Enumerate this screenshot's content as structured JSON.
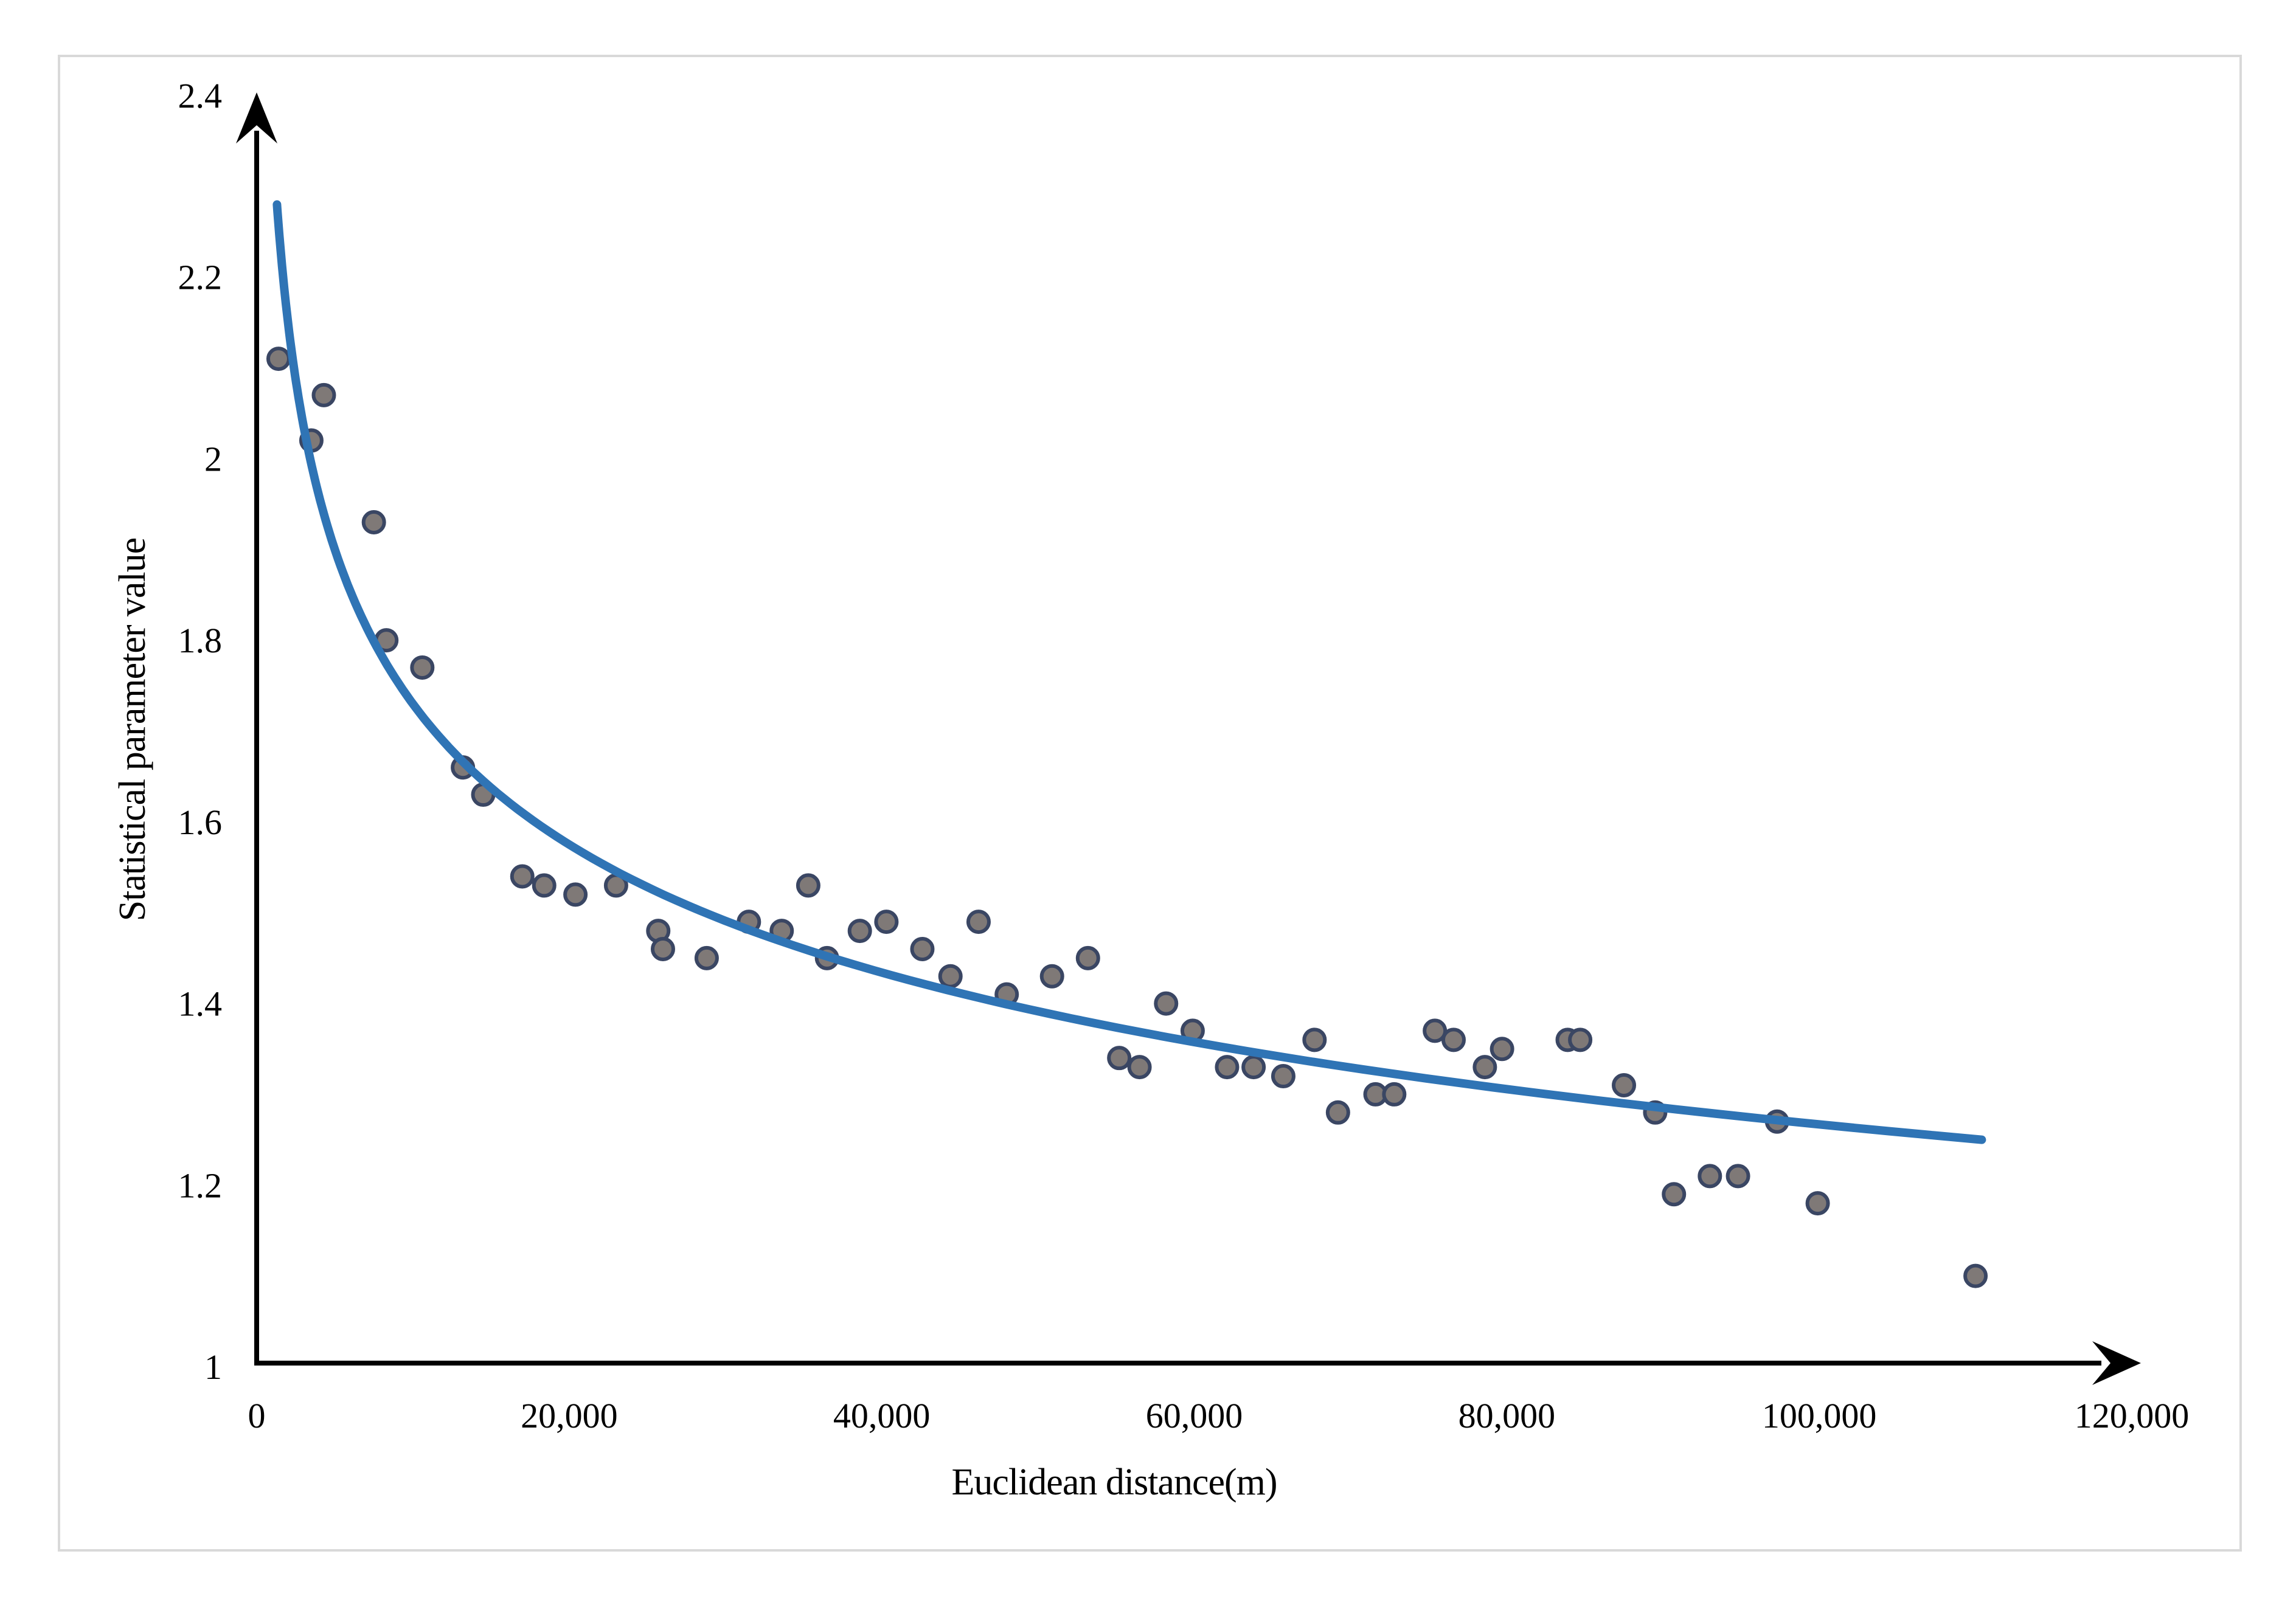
{
  "chart_data": {
    "type": "scatter",
    "title": "",
    "xlabel": "Euclidean distance(m)",
    "ylabel": "Statistical parameter value",
    "xlim": [
      0,
      120000
    ],
    "ylim": [
      1,
      2.4
    ],
    "grid": false,
    "legend_visible": false,
    "axis_style": {
      "line_color": "#000000",
      "arrow_ends": true,
      "frame_border_color": "#d9d9d9",
      "background": "#ffffff"
    },
    "x_ticks": [
      {
        "value": 0,
        "label": "0"
      },
      {
        "value": 20000,
        "label": "20,000"
      },
      {
        "value": 40000,
        "label": "40,000"
      },
      {
        "value": 60000,
        "label": "60,000"
      },
      {
        "value": 80000,
        "label": "80,000"
      },
      {
        "value": 100000,
        "label": "100,000"
      },
      {
        "value": 120000,
        "label": "120,000"
      }
    ],
    "y_ticks": [
      {
        "value": 1.0,
        "label": "1"
      },
      {
        "value": 1.2,
        "label": "1.2"
      },
      {
        "value": 1.4,
        "label": "1.4"
      },
      {
        "value": 1.6,
        "label": "1.6"
      },
      {
        "value": 1.8,
        "label": "1.8"
      },
      {
        "value": 2.0,
        "label": "2"
      },
      {
        "value": 2.2,
        "label": "2.2"
      },
      {
        "value": 2.4,
        "label": "2.4"
      }
    ],
    "series": [
      {
        "name": "statistical-parameter-points",
        "kind": "scatter",
        "marker": {
          "fill": "#7F7977",
          "stroke": "#3A4663",
          "radius": 17,
          "stroke_width": 6
        },
        "points": [
          [
            1400,
            2.11
          ],
          [
            3500,
            2.02
          ],
          [
            4300,
            2.07
          ],
          [
            7500,
            1.93
          ],
          [
            8300,
            1.8
          ],
          [
            10600,
            1.77
          ],
          [
            13200,
            1.66
          ],
          [
            14500,
            1.63
          ],
          [
            17000,
            1.54
          ],
          [
            18400,
            1.53
          ],
          [
            20400,
            1.52
          ],
          [
            23000,
            1.53
          ],
          [
            25700,
            1.48
          ],
          [
            26000,
            1.46
          ],
          [
            28800,
            1.45
          ],
          [
            31500,
            1.49
          ],
          [
            33600,
            1.48
          ],
          [
            35300,
            1.53
          ],
          [
            36500,
            1.45
          ],
          [
            38600,
            1.48
          ],
          [
            40300,
            1.49
          ],
          [
            42600,
            1.46
          ],
          [
            44400,
            1.43
          ],
          [
            46200,
            1.49
          ],
          [
            48000,
            1.41
          ],
          [
            50900,
            1.43
          ],
          [
            53200,
            1.45
          ],
          [
            55200,
            1.34
          ],
          [
            56500,
            1.33
          ],
          [
            58200,
            1.4
          ],
          [
            59900,
            1.37
          ],
          [
            62100,
            1.33
          ],
          [
            63800,
            1.33
          ],
          [
            65700,
            1.32
          ],
          [
            67700,
            1.36
          ],
          [
            69200,
            1.28
          ],
          [
            71600,
            1.3
          ],
          [
            72800,
            1.3
          ],
          [
            75400,
            1.37
          ],
          [
            76600,
            1.36
          ],
          [
            78600,
            1.33
          ],
          [
            79700,
            1.35
          ],
          [
            83900,
            1.36
          ],
          [
            84700,
            1.36
          ],
          [
            87500,
            1.31
          ],
          [
            89500,
            1.28
          ],
          [
            90700,
            1.19
          ],
          [
            93000,
            1.21
          ],
          [
            94800,
            1.21
          ],
          [
            97300,
            1.27
          ],
          [
            99900,
            1.18
          ],
          [
            110000,
            1.1
          ]
        ]
      },
      {
        "name": "power-trendline",
        "kind": "power-fit",
        "color": "#2F74B5",
        "line_width": 14,
        "coefficient": 6.015,
        "exponent": -0.1353,
        "x_range": [
          1300,
          110400
        ]
      }
    ]
  }
}
